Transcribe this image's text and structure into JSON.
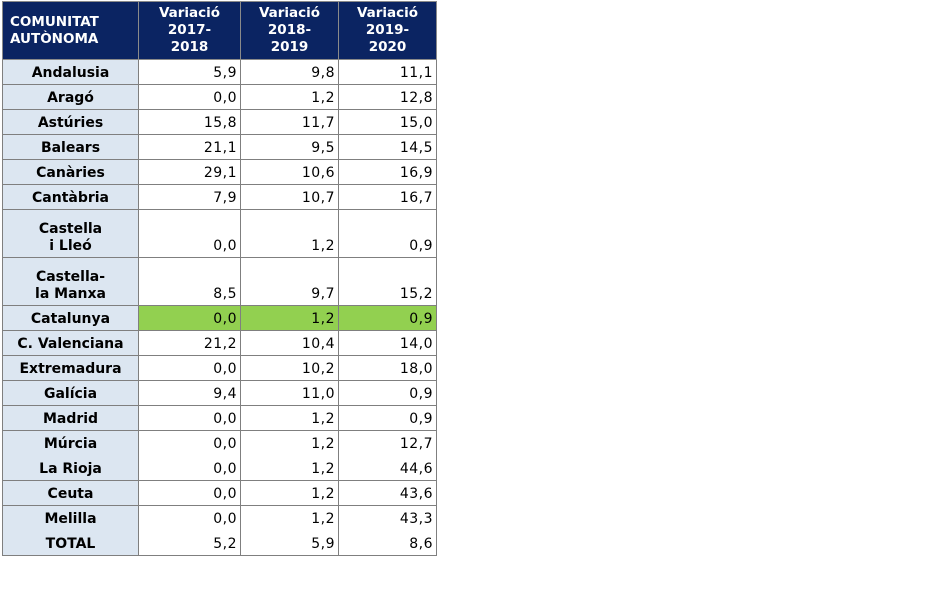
{
  "header": {
    "col1": [
      "COMUNITAT",
      "AUTÒNOMA"
    ],
    "col2": [
      "Variació",
      "2017-",
      "2018"
    ],
    "col3": [
      "Variació",
      "2018-",
      "2019"
    ],
    "col4": [
      "Variació",
      "2019-",
      "2020"
    ]
  },
  "rows": [
    {
      "name": [
        "Andalusia"
      ],
      "v": [
        "5,9",
        "9,8",
        "11,1"
      ]
    },
    {
      "name": [
        "Aragó"
      ],
      "v": [
        "0,0",
        "1,2",
        "12,8"
      ]
    },
    {
      "name": [
        "Astúries"
      ],
      "v": [
        "15,8",
        "11,7",
        "15,0"
      ]
    },
    {
      "name": [
        "Balears"
      ],
      "v": [
        "21,1",
        "9,5",
        "14,5"
      ]
    },
    {
      "name": [
        "Canàries"
      ],
      "v": [
        "29,1",
        "10,6",
        "16,9"
      ]
    },
    {
      "name": [
        "Cantàbria"
      ],
      "v": [
        "7,9",
        "10,7",
        "16,7"
      ]
    },
    {
      "name": [
        "Castella",
        "i Lleó"
      ],
      "v": [
        "0,0",
        "1,2",
        "0,9"
      ]
    },
    {
      "name": [
        "Castella-",
        "la Manxa"
      ],
      "v": [
        "8,5",
        "9,7",
        "15,2"
      ]
    },
    {
      "name": [
        "Catalunya"
      ],
      "v": [
        "0,0",
        "1,2",
        "0,9"
      ]
    },
    {
      "name": [
        "C. Valenciana"
      ],
      "v": [
        "21,2",
        "10,4",
        "14,0"
      ]
    },
    {
      "name": [
        "Extremadura"
      ],
      "v": [
        "0,0",
        "10,2",
        "18,0"
      ]
    },
    {
      "name": [
        "Galícia"
      ],
      "v": [
        "9,4",
        "11,0",
        "0,9"
      ]
    },
    {
      "name": [
        "Madrid"
      ],
      "v": [
        "0,0",
        "1,2",
        "0,9"
      ]
    },
    {
      "name": [
        "Múrcia"
      ],
      "v": [
        "0,0",
        "1,2",
        "12,7"
      ]
    },
    {
      "name": [
        "La Rioja"
      ],
      "v": [
        "0,0",
        "1,2",
        "44,6"
      ]
    },
    {
      "name": [
        "Ceuta"
      ],
      "v": [
        "0,0",
        "1,2",
        "43,6"
      ]
    },
    {
      "name": [
        "Melilla"
      ],
      "v": [
        "0,0",
        "1,2",
        "43,3"
      ]
    },
    {
      "name": [
        "TOTAL"
      ],
      "v": [
        "5,2",
        "5,9",
        "8,6"
      ]
    }
  ],
  "colors": {
    "header_bg": "#0b2462",
    "name_bg": "#dce6f1",
    "highlight_bg": "#92d050"
  }
}
